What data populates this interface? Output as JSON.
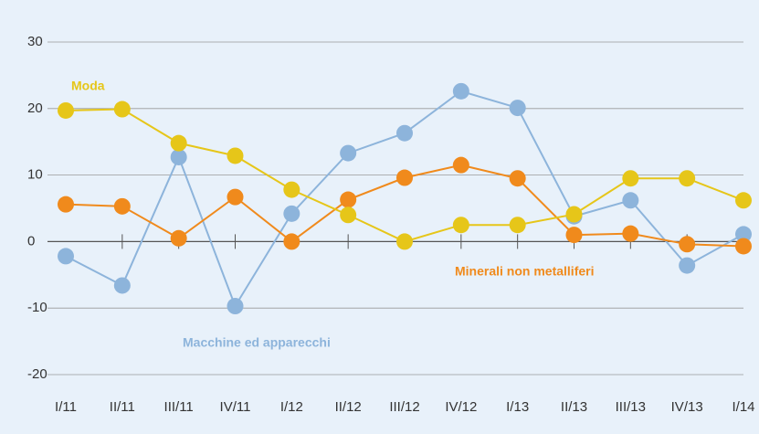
{
  "chart_data": {
    "type": "line",
    "categories": [
      "I/11",
      "II/11",
      "III/11",
      "IV/11",
      "I/12",
      "II/12",
      "III/12",
      "IV/12",
      "I/13",
      "II/13",
      "III/13",
      "IV/13",
      "I/14"
    ],
    "series": [
      {
        "name": "Macchine ed apparecchi",
        "color": "#8db4db",
        "values": [
          -2.2,
          -6.6,
          12.7,
          -9.7,
          4.2,
          13.3,
          16.3,
          22.6,
          20.1,
          3.8,
          6.2,
          -3.6,
          1.1
        ]
      },
      {
        "name": "Minerali non metalliferi",
        "color": "#f08a1c",
        "values": [
          5.6,
          5.3,
          0.5,
          6.7,
          0.0,
          6.3,
          9.6,
          11.5,
          9.5,
          1.0,
          1.2,
          -0.4,
          -0.7
        ]
      },
      {
        "name": "Moda",
        "color": "#e6c619",
        "values": [
          19.7,
          19.9,
          14.8,
          12.9,
          7.8,
          4.0,
          0.0,
          2.5,
          2.5,
          4.1,
          9.5,
          9.5,
          6.2
        ]
      }
    ],
    "ylim": [
      -20,
      30
    ],
    "yticks": [
      -20,
      -10,
      0,
      10,
      20,
      30
    ],
    "grid": true
  }
}
